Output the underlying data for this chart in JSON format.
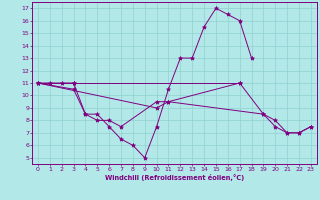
{
  "xlabel": "Windchill (Refroidissement éolien,°C)",
  "background_color": "#b2e8e8",
  "line_color": "#800080",
  "grid_color": "#90d0d0",
  "xlim": [
    -0.5,
    23.5
  ],
  "ylim": [
    4.5,
    17.5
  ],
  "xticks": [
    0,
    1,
    2,
    3,
    4,
    5,
    6,
    7,
    8,
    9,
    10,
    11,
    12,
    13,
    14,
    15,
    16,
    17,
    18,
    19,
    20,
    21,
    22,
    23
  ],
  "yticks": [
    5,
    6,
    7,
    8,
    9,
    10,
    11,
    12,
    13,
    14,
    15,
    16,
    17
  ],
  "series": [
    {
      "x": [
        0,
        1,
        2,
        3,
        17
      ],
      "y": [
        11,
        11,
        11,
        11,
        11
      ]
    },
    {
      "x": [
        0,
        3,
        4,
        5,
        6,
        7,
        8,
        9,
        10,
        11,
        12,
        13,
        14,
        15,
        16,
        17,
        18
      ],
      "y": [
        11,
        10.5,
        8.5,
        8.5,
        7.5,
        6.5,
        6.0,
        5.0,
        7.5,
        10.5,
        13.0,
        13.0,
        15.5,
        17.0,
        16.5,
        16.0,
        13.0
      ]
    },
    {
      "x": [
        0,
        3,
        4,
        5,
        6,
        7,
        10,
        11,
        17,
        19,
        20,
        21,
        22,
        23
      ],
      "y": [
        11,
        11,
        8.5,
        8.0,
        8.0,
        7.5,
        9.5,
        9.5,
        11,
        8.5,
        8.0,
        7.0,
        7.0,
        7.5
      ]
    },
    {
      "x": [
        0,
        10,
        11,
        19,
        20,
        21,
        22,
        23
      ],
      "y": [
        11,
        9.0,
        9.5,
        8.5,
        7.5,
        7.0,
        7.0,
        7.5
      ]
    }
  ]
}
